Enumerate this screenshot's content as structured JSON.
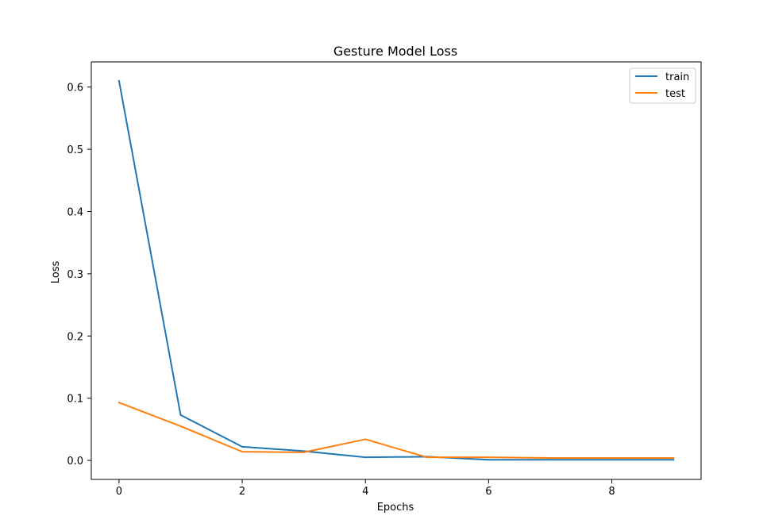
{
  "chart_data": {
    "type": "line",
    "title": "Gesture Model Loss",
    "xlabel": "Epochs",
    "ylabel": "Loss",
    "xlim": [
      -0.45,
      9.45
    ],
    "ylim": [
      -0.0305,
      0.6405
    ],
    "xticks": [
      0,
      2,
      4,
      6,
      8
    ],
    "xtick_labels": [
      "0",
      "2",
      "4",
      "6",
      "8"
    ],
    "yticks": [
      0.0,
      0.1,
      0.2,
      0.3,
      0.4,
      0.5,
      0.6
    ],
    "ytick_labels": [
      "0.0",
      "0.1",
      "0.2",
      "0.3",
      "0.4",
      "0.5",
      "0.6"
    ],
    "grid": false,
    "legend_position": "top-right",
    "x": [
      0,
      1,
      2,
      3,
      4,
      5,
      6,
      7,
      8,
      9
    ],
    "series": [
      {
        "name": "train",
        "color": "#1f77b4",
        "values": [
          0.61,
          0.073,
          0.022,
          0.015,
          0.005,
          0.006,
          0.001,
          0.001,
          0.001,
          0.001
        ]
      },
      {
        "name": "test",
        "color": "#ff7f0e",
        "values": [
          0.093,
          0.055,
          0.014,
          0.013,
          0.034,
          0.005,
          0.005,
          0.004,
          0.004,
          0.004
        ]
      }
    ]
  }
}
